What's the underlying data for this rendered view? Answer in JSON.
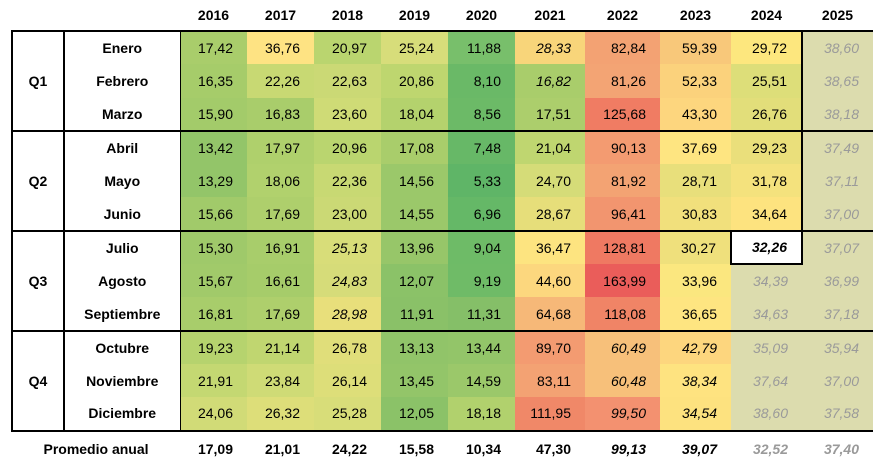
{
  "years": [
    "2016",
    "2017",
    "2018",
    "2019",
    "2020",
    "2021",
    "2022",
    "2023",
    "2024",
    "2025"
  ],
  "quarters": [
    {
      "label": "Q1",
      "months": [
        {
          "name": "Enero",
          "values": [
            "17,42",
            "36,76",
            "20,97",
            "25,24",
            "11,88",
            "28,33",
            "82,84",
            "59,39",
            "29,72",
            "38,60"
          ],
          "colors": [
            "#a9cd6b",
            "#fee383",
            "#bad56f",
            "#d7dd7a",
            "#78bf6b",
            "#f8d57a",
            "#f3a273",
            "#f8c87a",
            "#fde77e",
            "#dcdcae"
          ]
        },
        {
          "name": "Febrero",
          "values": [
            "16,35",
            "22,26",
            "22,63",
            "20,86",
            "8,10",
            "16,82",
            "81,26",
            "52,33",
            "25,51",
            "38,65"
          ],
          "colors": [
            "#a6cc6a",
            "#c8d973",
            "#cbd975",
            "#bed66f",
            "#6ab967",
            "#a9cd6b",
            "#f3a474",
            "#fbd27c",
            "#ddde79",
            "#dcdcae"
          ]
        },
        {
          "name": "Marzo",
          "values": [
            "15,90",
            "16,83",
            "23,60",
            "18,04",
            "8,56",
            "17,51",
            "125,68",
            "43,30",
            "26,76",
            "38,18"
          ],
          "colors": [
            "#a3cb6a",
            "#a9cd6b",
            "#cfdb76",
            "#b4d26d",
            "#6cba67",
            "#acce6c",
            "#f07c63",
            "#fdd67e",
            "#e2de7a",
            "#dcdcae"
          ]
        }
      ]
    },
    {
      "label": "Q2",
      "months": [
        {
          "name": "Abril",
          "values": [
            "13,42",
            "17,97",
            "20,96",
            "17,08",
            "7,48",
            "21,04",
            "90,13",
            "37,69",
            "29,23",
            "37,49"
          ],
          "colors": [
            "#93c569",
            "#afd06c",
            "#bad56f",
            "#a9cd6b",
            "#67b867",
            "#bfd670",
            "#f39b71",
            "#fee581",
            "#eadf7b",
            "#dcdcae"
          ]
        },
        {
          "name": "Mayo",
          "values": [
            "13,29",
            "18,06",
            "22,36",
            "14,56",
            "5,33",
            "24,70",
            "81,92",
            "28,71",
            "31,78",
            "37,11"
          ],
          "colors": [
            "#93c569",
            "#b1d16d",
            "#c8d973",
            "#9bc86a",
            "#5fb567",
            "#d5dc78",
            "#f3a373",
            "#e8df7b",
            "#f4e27d",
            "#dcdcae"
          ]
        },
        {
          "name": "Junio",
          "values": [
            "15,66",
            "17,69",
            "23,00",
            "14,55",
            "6,96",
            "28,67",
            "96,41",
            "30,83",
            "34,64",
            "37,00"
          ],
          "colors": [
            "#a1ca6a",
            "#aecf6c",
            "#cbd975",
            "#9bc86a",
            "#65b867",
            "#e6de7a",
            "#f2956f",
            "#f1e07c",
            "#fde37f",
            "#dcdcae"
          ]
        }
      ]
    },
    {
      "label": "Q3",
      "months": [
        {
          "name": "Julio",
          "values": [
            "15,30",
            "16,91",
            "25,13",
            "13,96",
            "9,04",
            "36,47",
            "128,81",
            "30,27",
            "32,26",
            "37,07"
          ],
          "colors": [
            "#9fc96a",
            "#a8cd6b",
            "#d8dd79",
            "#97c669",
            "#6ebb67",
            "#fde480",
            "#ef7962",
            "#efe07c",
            "#ffffff",
            "#dcdcae"
          ]
        },
        {
          "name": "Agosto",
          "values": [
            "15,67",
            "16,61",
            "24,83",
            "12,07",
            "9,19",
            "44,60",
            "163,99",
            "33,96",
            "34,39",
            "36,99"
          ],
          "colors": [
            "#a1ca6a",
            "#a6cc6a",
            "#d6dc79",
            "#8bc268",
            "#6fbb67",
            "#fcd77e",
            "#ea5d5a",
            "#fbe77f",
            "#dcdcae",
            "#dcdcae"
          ]
        },
        {
          "name": "Septiembre",
          "values": [
            "16,81",
            "17,69",
            "28,98",
            "11,91",
            "11,31",
            "64,68",
            "118,08",
            "36,65",
            "34,63",
            "37,18"
          ],
          "colors": [
            "#a8cd6b",
            "#aecf6c",
            "#e8df7b",
            "#8ac168",
            "#85bf68",
            "#f6b878",
            "#f08466",
            "#fee581",
            "#dcdcae",
            "#dcdcae"
          ]
        }
      ]
    },
    {
      "label": "Q4",
      "months": [
        {
          "name": "Octubre",
          "values": [
            "19,23",
            "21,14",
            "26,78",
            "13,13",
            "13,44",
            "89,70",
            "60,49",
            "42,79",
            "35,09",
            "35,94"
          ],
          "colors": [
            "#b6d36e",
            "#c0d670",
            "#e0de7a",
            "#91c469",
            "#93c569",
            "#f39b71",
            "#f7c07a",
            "#fdd67e",
            "#dcdcae",
            "#dcdcae"
          ]
        },
        {
          "name": "Noviembre",
          "values": [
            "21,91",
            "23,84",
            "26,14",
            "13,45",
            "14,59",
            "83,11",
            "60,48",
            "38,34",
            "37,64",
            "37,00"
          ],
          "colors": [
            "#c4d872",
            "#cfdb76",
            "#ddde79",
            "#93c569",
            "#9bc86a",
            "#f3a273",
            "#f7c07a",
            "#fee380",
            "#dcdcae",
            "#dcdcae"
          ]
        },
        {
          "name": "Diciembre",
          "values": [
            "24,06",
            "26,32",
            "25,28",
            "12,05",
            "18,18",
            "111,95",
            "99,50",
            "34,54",
            "38,60",
            "37,58"
          ],
          "colors": [
            "#d1db77",
            "#ddde79",
            "#d8dd79",
            "#8bc268",
            "#b1d16d",
            "#f08868",
            "#f39170",
            "#fde27f",
            "#dcdcae",
            "#dcdcae"
          ]
        }
      ]
    }
  ],
  "average": {
    "label": "Promedio anual",
    "values": [
      "17,09",
      "21,01",
      "24,22",
      "15,58",
      "10,34",
      "47,30",
      "99,13",
      "39,07",
      "32,52",
      "37,40"
    ]
  }
}
